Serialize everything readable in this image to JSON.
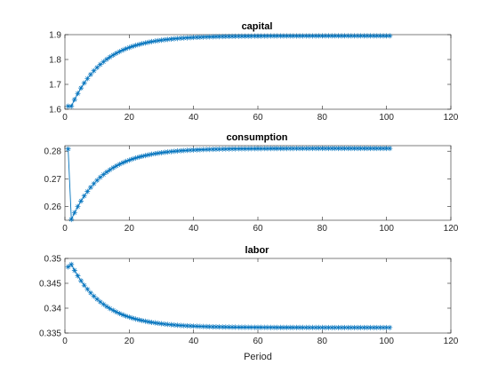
{
  "figure_background": "#ffffff",
  "chart_data": [
    {
      "type": "line",
      "title": "capital",
      "xlabel": "",
      "ylabel": "",
      "xlim": [
        0,
        120
      ],
      "ylim": [
        1.6,
        1.9
      ],
      "xticks": [
        0,
        20,
        40,
        60,
        80,
        100,
        120
      ],
      "yticks": [
        1.6,
        1.7,
        1.8,
        1.9
      ],
      "ytick_labels": [
        "1.6",
        "1.7",
        "1.8",
        "1.9"
      ],
      "grid": false,
      "marker": "asterisk",
      "color": "#0072bd",
      "series": [
        {
          "x_start": 1,
          "x_end": 101,
          "model": "exponential",
          "start_values": [
            1.612,
            1.612
          ],
          "steady_state": 1.895,
          "decay_rate": 0.1
        }
      ]
    },
    {
      "type": "line",
      "title": "consumption",
      "xlabel": "",
      "ylabel": "",
      "xlim": [
        0,
        120
      ],
      "ylim": [
        0.255,
        0.282
      ],
      "xticks": [
        0,
        20,
        40,
        60,
        80,
        100,
        120
      ],
      "yticks": [
        0.26,
        0.27,
        0.28
      ],
      "ytick_labels": [
        "0.26",
        "0.27",
        "0.28"
      ],
      "grid": false,
      "marker": "asterisk",
      "color": "#0072bd",
      "series": [
        {
          "x_start": 1,
          "x_end": 101,
          "model": "exponential",
          "start_values": [
            0.2808,
            0.2553
          ],
          "steady_state": 0.281,
          "decay_rate": 0.1
        }
      ]
    },
    {
      "type": "line",
      "title": "labor",
      "xlabel": "Period",
      "ylabel": "",
      "xlim": [
        0,
        120
      ],
      "ylim": [
        0.335,
        0.35
      ],
      "xticks": [
        0,
        20,
        40,
        60,
        80,
        100,
        120
      ],
      "yticks": [
        0.335,
        0.34,
        0.345,
        0.35
      ],
      "ytick_labels": [
        "0.335",
        "0.34",
        "0.345",
        "0.35"
      ],
      "grid": false,
      "marker": "asterisk",
      "color": "#0072bd",
      "series": [
        {
          "x_start": 1,
          "x_end": 101,
          "model": "exponential",
          "start_values": [
            0.3483,
            0.3488
          ],
          "steady_state": 0.3361,
          "decay_rate": 0.1
        }
      ]
    }
  ]
}
